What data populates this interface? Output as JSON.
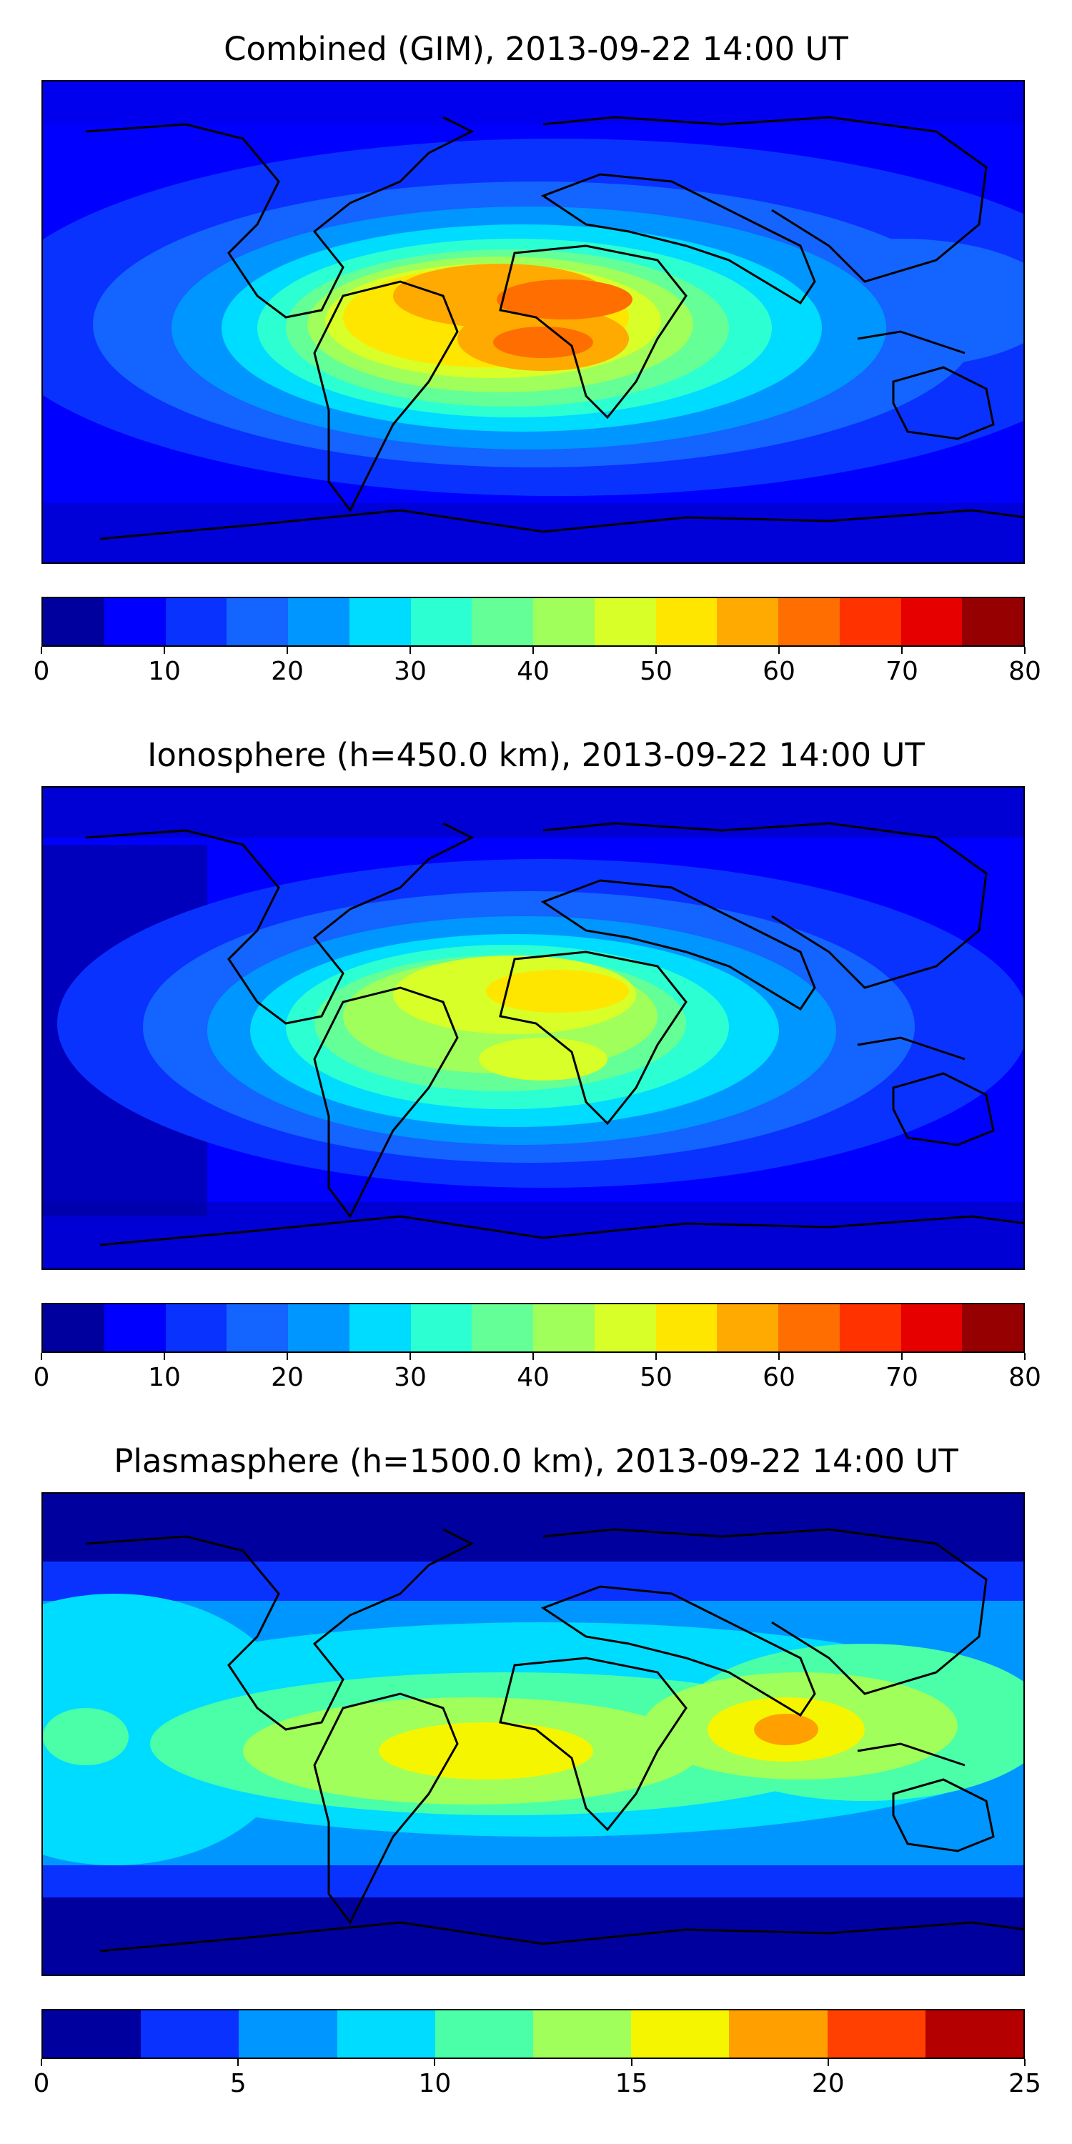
{
  "figure": {
    "panels": [
      {
        "title": "Combined (GIM), 2013-09-22 14:00 UT",
        "colorbar": {
          "colors": [
            "#00009f",
            "#0000ff",
            "#0a32ff",
            "#1464ff",
            "#0096ff",
            "#00dcff",
            "#2cffd2",
            "#64ff96",
            "#a0ff5a",
            "#d8ff28",
            "#ffe600",
            "#ffaa00",
            "#ff6e00",
            "#ff3200",
            "#e60000",
            "#960000"
          ],
          "ticks": [
            "0",
            "10",
            "20",
            "30",
            "40",
            "50",
            "60",
            "70",
            "80"
          ]
        }
      },
      {
        "title": "Ionosphere  (h=450.0 km), 2013-09-22 14:00 UT",
        "colorbar": {
          "colors": [
            "#00009f",
            "#0000ff",
            "#0a32ff",
            "#1464ff",
            "#0096ff",
            "#00dcff",
            "#2cffd2",
            "#64ff96",
            "#a0ff5a",
            "#d8ff28",
            "#ffe600",
            "#ffaa00",
            "#ff6e00",
            "#ff3200",
            "#e60000",
            "#960000"
          ],
          "ticks": [
            "0",
            "10",
            "20",
            "30",
            "40",
            "50",
            "60",
            "70",
            "80"
          ]
        }
      },
      {
        "title": "Plasmasphere (h=1500.0 km), 2013-09-22 14:00 UT",
        "colorbar": {
          "colors": [
            "#00009f",
            "#0a32ff",
            "#0096ff",
            "#00dcff",
            "#4affa8",
            "#a0ff5a",
            "#f5f500",
            "#ffa000",
            "#ff4000",
            "#b40000"
          ],
          "ticks": [
            "0",
            "5",
            "10",
            "15",
            "20",
            "25"
          ]
        }
      }
    ]
  }
}
